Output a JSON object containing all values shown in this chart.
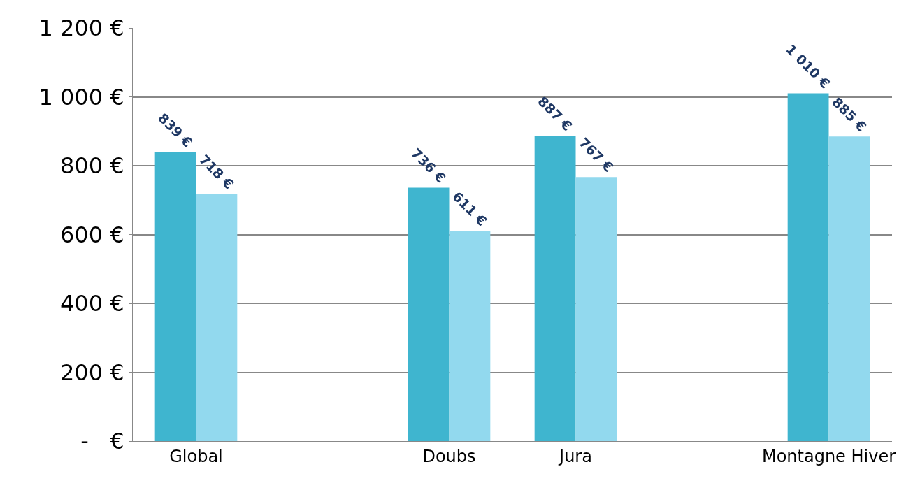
{
  "chart_data": {
    "type": "bar",
    "categories": [
      "Global",
      null,
      "Doubs",
      "Jura",
      null,
      "Montagne Hiver"
    ],
    "series": [
      {
        "color": "#3fb5cf",
        "values": [
          839,
          null,
          736,
          887,
          null,
          1010
        ],
        "value_labels": [
          "839 €",
          null,
          "736 €",
          "887 €",
          null,
          "1 010 €"
        ]
      },
      {
        "color": "#92d9ee",
        "values": [
          718,
          null,
          611,
          767,
          null,
          885
        ],
        "value_labels": [
          "718 €",
          null,
          "611 €",
          "767 €",
          null,
          "885 €"
        ]
      }
    ],
    "ylim": [
      0,
      1200
    ],
    "yticks": [
      {
        "value": 0,
        "label": "-   €"
      },
      {
        "value": 200,
        "label": "200 €"
      },
      {
        "value": 400,
        "label": "400 €"
      },
      {
        "value": 600,
        "label": "600 €"
      },
      {
        "value": 800,
        "label": "800 €"
      },
      {
        "value": 1000,
        "label": "1 000 €"
      },
      {
        "value": 1200,
        "label": "1 200 €"
      }
    ],
    "grid": "y"
  }
}
